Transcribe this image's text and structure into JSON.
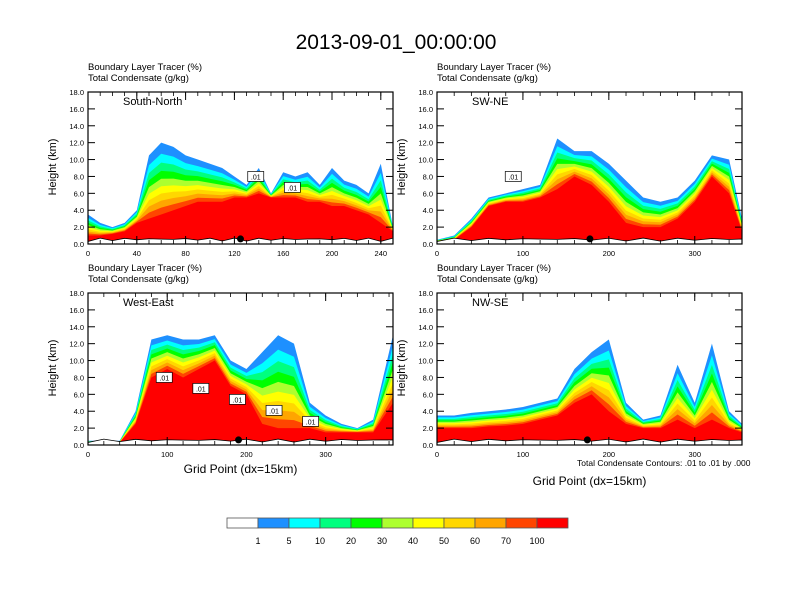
{
  "title": "2013-09-01_00:00:00",
  "chart_data": [
    {
      "type": "heatmap",
      "panel": "top-left",
      "label": "South-North",
      "header_lines": [
        "Boundary Layer Tracer   (%)",
        "Total Condensate   (g/kg)"
      ],
      "ylabel": "Height (km)",
      "xlabel": "",
      "ylim": [
        0,
        18
      ],
      "yticks": [
        "0.0",
        "2.0",
        "4.0",
        "6.0",
        "8.0",
        "10.0",
        "12.0",
        "14.0",
        "16.0",
        "18.0"
      ],
      "xlim": [
        0,
        250
      ],
      "xticks": [
        0,
        40,
        80,
        120,
        160,
        200,
        240
      ],
      "marker_x": 125,
      "contour_labels": [
        ".01",
        ".01"
      ],
      "profile": {
        "x": [
          0,
          10,
          20,
          30,
          40,
          50,
          60,
          70,
          80,
          90,
          100,
          110,
          120,
          130,
          140,
          150,
          160,
          170,
          180,
          190,
          200,
          210,
          220,
          230,
          240,
          250
        ],
        "tracer_top_km": [
          3.5,
          2.5,
          2.0,
          2.5,
          4.0,
          10.5,
          12.0,
          11.5,
          10.5,
          10.0,
          9.5,
          9.0,
          8.0,
          7.0,
          9.0,
          6.0,
          8.5,
          8.0,
          8.5,
          7.0,
          9.0,
          7.5,
          7.0,
          6.0,
          9.5,
          2.0
        ],
        "red_top_km": [
          1.0,
          1.0,
          1.2,
          1.5,
          2.5,
          3.0,
          3.5,
          4.0,
          4.5,
          5.0,
          5.0,
          5.0,
          5.5,
          5.5,
          6.0,
          5.5,
          5.5,
          5.5,
          5.0,
          5.0,
          4.5,
          4.5,
          4.0,
          3.5,
          2.5,
          1.5
        ]
      }
    },
    {
      "type": "heatmap",
      "panel": "top-right",
      "label": "SW-NE",
      "header_lines": [
        "Boundary Layer Tracer   (%)",
        "Total Condensate   (g/kg)"
      ],
      "ylabel": "Height (km)",
      "xlabel": "",
      "ylim": [
        0,
        18
      ],
      "yticks": [
        "0.0",
        "2.0",
        "4.0",
        "6.0",
        "8.0",
        "10.0",
        "12.0",
        "14.0",
        "16.0",
        "18.0"
      ],
      "xlim": [
        0,
        355
      ],
      "xticks": [
        0,
        100,
        200,
        300
      ],
      "marker_x": 178,
      "contour_labels": [
        ".01"
      ],
      "profile": {
        "x": [
          0,
          20,
          40,
          60,
          80,
          100,
          120,
          140,
          160,
          180,
          200,
          220,
          240,
          260,
          280,
          300,
          320,
          340,
          355
        ],
        "tracer_top_km": [
          0.5,
          1.0,
          3.0,
          5.5,
          6.0,
          6.5,
          7.0,
          12.5,
          11.0,
          11.0,
          9.5,
          7.5,
          5.5,
          5.0,
          5.5,
          7.5,
          10.5,
          10.0,
          3.0
        ],
        "red_top_km": [
          0.3,
          0.5,
          2.0,
          4.5,
          5.0,
          5.0,
          5.5,
          6.5,
          8.0,
          7.0,
          5.0,
          2.5,
          2.0,
          2.0,
          3.0,
          5.0,
          8.0,
          6.0,
          1.5
        ]
      }
    },
    {
      "type": "heatmap",
      "panel": "bottom-left",
      "label": "West-East",
      "header_lines": [
        "Boundary Layer Tracer   (%)",
        "Total Condensate   (g/kg)"
      ],
      "ylabel": "Height (km)",
      "xlabel": "Grid Point (dx=15km)",
      "ylim": [
        0,
        18
      ],
      "yticks": [
        "0.0",
        "2.0",
        "4.0",
        "6.0",
        "8.0",
        "10.0",
        "12.0",
        "14.0",
        "16.0",
        "18.0"
      ],
      "xlim": [
        0,
        385
      ],
      "xticks": [
        0,
        100,
        200,
        300
      ],
      "marker_x": 190,
      "contour_labels": [
        ".01",
        ".01",
        ".01",
        ".01",
        ".01"
      ],
      "profile": {
        "x": [
          0,
          20,
          40,
          60,
          80,
          100,
          120,
          140,
          160,
          180,
          200,
          220,
          240,
          260,
          280,
          300,
          320,
          340,
          360,
          385
        ],
        "tracer_top_km": [
          0.5,
          0.5,
          0.5,
          4.0,
          12.5,
          13.0,
          12.5,
          12.5,
          13.0,
          10.0,
          9.0,
          11.0,
          13.0,
          12.0,
          5.0,
          3.5,
          2.5,
          2.0,
          3.0,
          13.0
        ],
        "red_top_km": [
          0.3,
          0.3,
          0.3,
          2.5,
          8.0,
          9.0,
          8.0,
          9.0,
          10.0,
          7.0,
          6.0,
          2.5,
          2.0,
          2.0,
          2.0,
          1.5,
          1.5,
          1.5,
          1.5,
          5.0
        ]
      }
    },
    {
      "type": "heatmap",
      "panel": "bottom-right",
      "label": "NW-SE",
      "header_lines": [
        "Boundary Layer Tracer   (%)",
        "Total Condensate   (g/kg)"
      ],
      "ylabel": "Height (km)",
      "xlabel": "Grid Point (dx=15km)",
      "ylim": [
        0,
        18
      ],
      "yticks": [
        "0.0",
        "2.0",
        "4.0",
        "6.0",
        "8.0",
        "10.0",
        "12.0",
        "14.0",
        "16.0",
        "18.0"
      ],
      "xlim": [
        0,
        355
      ],
      "xticks": [
        0,
        100,
        200,
        300
      ],
      "marker_x": 175,
      "contour_labels": [],
      "contour_note": "Total Condensate Contours: .01 to .01 by .000",
      "profile": {
        "x": [
          0,
          20,
          40,
          60,
          80,
          100,
          120,
          140,
          160,
          180,
          200,
          220,
          240,
          260,
          280,
          300,
          320,
          340,
          355
        ],
        "tracer_top_km": [
          3.5,
          3.5,
          3.8,
          4.0,
          4.2,
          4.5,
          5.0,
          5.5,
          9.0,
          11.0,
          12.5,
          5.0,
          3.0,
          3.5,
          9.5,
          5.0,
          12.0,
          4.0,
          2.5
        ],
        "red_top_km": [
          2.0,
          2.0,
          2.0,
          2.2,
          2.3,
          2.5,
          3.0,
          3.5,
          5.0,
          6.0,
          4.0,
          2.5,
          2.0,
          2.0,
          3.0,
          2.0,
          3.0,
          2.0,
          1.5
        ]
      }
    }
  ],
  "colorbar": {
    "colors": [
      "#ffffff",
      "#1e90ff",
      "#00ffff",
      "#00ff7f",
      "#00ff00",
      "#adff2f",
      "#ffff00",
      "#ffd700",
      "#ffa500",
      "#ff4500",
      "#ff0000"
    ],
    "labels": [
      "1",
      "5",
      "10",
      "20",
      "30",
      "40",
      "50",
      "60",
      "70",
      "100"
    ]
  }
}
